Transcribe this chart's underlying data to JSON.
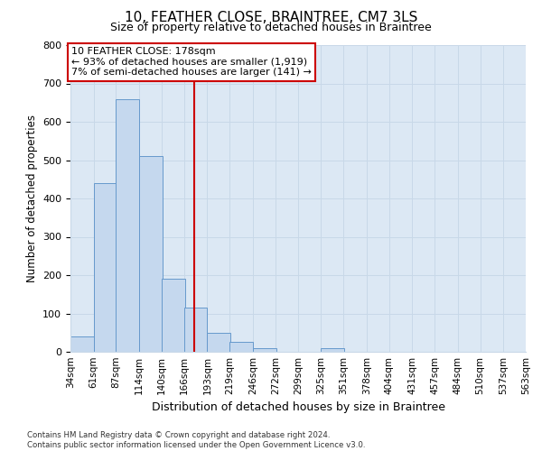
{
  "title": "10, FEATHER CLOSE, BRAINTREE, CM7 3LS",
  "subtitle": "Size of property relative to detached houses in Braintree",
  "xlabel": "Distribution of detached houses by size in Braintree",
  "ylabel": "Number of detached properties",
  "bin_edges": [
    34,
    61,
    87,
    114,
    140,
    166,
    193,
    219,
    246,
    272,
    299,
    325,
    351,
    378,
    404,
    431,
    457,
    484,
    510,
    537,
    563
  ],
  "bar_heights": [
    40,
    440,
    660,
    510,
    190,
    115,
    50,
    25,
    10,
    0,
    0,
    10,
    0,
    0,
    0,
    0,
    0,
    0,
    0,
    0
  ],
  "bar_color": "#c5d8ee",
  "bar_edge_color": "#6699cc",
  "vline_x": 178,
  "vline_color": "#cc0000",
  "annotation_line1": "10 FEATHER CLOSE: 178sqm",
  "annotation_line2": "← 93% of detached houses are smaller (1,919)",
  "annotation_line3": "7% of semi-detached houses are larger (141) →",
  "annotation_box_color": "#cc0000",
  "ylim": [
    0,
    800
  ],
  "yticks": [
    0,
    100,
    200,
    300,
    400,
    500,
    600,
    700,
    800
  ],
  "grid_color": "#c8d8e8",
  "bg_color": "#dce8f4",
  "title_fontsize": 11,
  "subtitle_fontsize": 9,
  "footnote": "Contains HM Land Registry data © Crown copyright and database right 2024.\nContains public sector information licensed under the Open Government Licence v3.0."
}
